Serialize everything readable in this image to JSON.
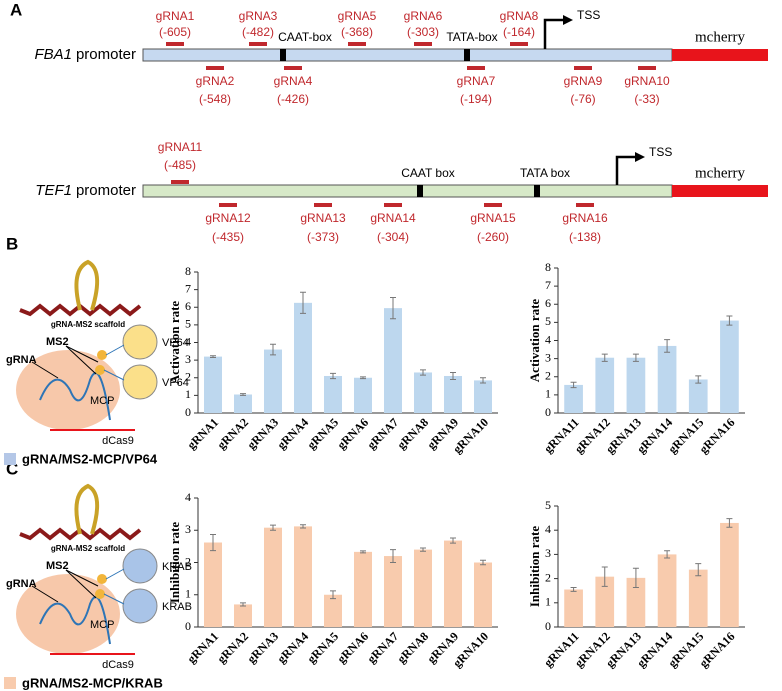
{
  "panel_letters": [
    "A",
    "B",
    "C"
  ],
  "panel_a": {
    "tracks": [
      {
        "gene": "FBA1",
        "label": "promoter",
        "boxes": [
          "CAAT-box",
          "TATA-box"
        ],
        "tss": "TSS",
        "reporter": "mcherry",
        "grnas": [
          {
            "name": "gRNA1",
            "position": "(-605)"
          },
          {
            "name": "gRNA2",
            "position": "(-548)"
          },
          {
            "name": "gRNA3",
            "position": "(-482)"
          },
          {
            "name": "gRNA4",
            "position": "(-426)"
          },
          {
            "name": "gRNA5",
            "position": "(-368)"
          },
          {
            "name": "gRNA6",
            "position": "(-303)"
          },
          {
            "name": "gRNA7",
            "position": "(-194)"
          },
          {
            "name": "gRNA8",
            "position": "(-164)"
          },
          {
            "name": "gRNA9",
            "position": "(-76)"
          },
          {
            "name": "gRNA10",
            "position": "(-33)"
          }
        ]
      },
      {
        "gene": "TEF1",
        "label": "promoter",
        "boxes": [
          "CAAT box",
          "TATA box"
        ],
        "tss": "TSS",
        "reporter": "mcherry",
        "grnas": [
          {
            "name": "gRNA11",
            "position": "(-485)"
          },
          {
            "name": "gRNA12",
            "position": "(-435)"
          },
          {
            "name": "gRNA13",
            "position": "(-373)"
          },
          {
            "name": "gRNA14",
            "position": "(-304)"
          },
          {
            "name": "gRNA15",
            "position": "(-260)"
          },
          {
            "name": "gRNA16",
            "position": "(-138)"
          }
        ]
      }
    ]
  },
  "schematics": [
    {
      "scaffold": "gRNA-MS2 scaffold",
      "ms2": "MS2",
      "grna": "gRNA",
      "effector": [
        "VP64",
        "VP64"
      ],
      "mcp": "MCP",
      "dcas9": "dCas9",
      "legend": "gRNA/MS2-MCP/VP64",
      "effector_color": "#fbe08a",
      "legend_color": "#b4c7e7"
    },
    {
      "scaffold": "gRNA-MS2 scaffold",
      "ms2": "MS2",
      "grna": "gRNA",
      "effector": [
        "KRAB",
        "KRAB"
      ],
      "mcp": "MCP",
      "dcas9": "dCas9",
      "legend": "gRNA/MS2-MCP/KRAB",
      "effector_color": "#a9c4e8",
      "legend_color": "#f8cbad"
    }
  ],
  "chart_data": [
    {
      "type": "bar",
      "ylabel": "Activation rate",
      "color": "#bdd7ee",
      "categories": [
        "gRNA1",
        "gRNA2",
        "gRNA3",
        "gRNA4",
        "gRNA5",
        "gRNA6",
        "gRNA7",
        "gRNA8",
        "gRNA9",
        "gRNA10"
      ],
      "values": [
        3.2,
        1.05,
        3.6,
        6.25,
        2.1,
        2.0,
        5.95,
        2.3,
        2.1,
        1.85
      ],
      "errors": [
        0.05,
        0.05,
        0.3,
        0.6,
        0.15,
        0.05,
        0.6,
        0.15,
        0.2,
        0.15
      ],
      "ylim": [
        0,
        8
      ],
      "yticks": [
        0,
        1,
        2,
        3,
        4,
        5,
        6,
        7,
        8
      ]
    },
    {
      "type": "bar",
      "ylabel": "Activation rate",
      "color": "#bdd7ee",
      "categories": [
        "gRNA11",
        "gRNA12",
        "gRNA13",
        "gRNA14",
        "gRNA15",
        "gRNA16"
      ],
      "values": [
        1.55,
        3.05,
        3.05,
        3.7,
        1.85,
        5.1
      ],
      "errors": [
        0.15,
        0.2,
        0.2,
        0.35,
        0.2,
        0.25
      ],
      "ylim": [
        0,
        8
      ],
      "yticks": [
        0,
        1,
        2,
        3,
        4,
        5,
        6,
        7,
        8
      ]
    },
    {
      "type": "bar",
      "ylabel": "Inhibition rate",
      "color": "#f8cbad",
      "categories": [
        "gRNA1",
        "gRNA2",
        "gRNA3",
        "gRNA4",
        "gRNA5",
        "gRNA6",
        "gRNA7",
        "gRNA8",
        "gRNA9",
        "gRNA10"
      ],
      "values": [
        2.62,
        0.7,
        3.08,
        3.12,
        1.0,
        2.33,
        2.2,
        2.4,
        2.68,
        2.0
      ],
      "errors": [
        0.25,
        0.05,
        0.08,
        0.05,
        0.12,
        0.03,
        0.2,
        0.05,
        0.08,
        0.07
      ],
      "ylim": [
        0,
        4
      ],
      "yticks": [
        0,
        1,
        2,
        3,
        4
      ]
    },
    {
      "type": "bar",
      "ylabel": "Inhibition rate",
      "color": "#f8cbad",
      "categories": [
        "gRNA11",
        "gRNA12",
        "gRNA13",
        "gRNA14",
        "gRNA15",
        "gRNA16"
      ],
      "values": [
        1.55,
        2.08,
        2.03,
        3.0,
        2.37,
        4.3
      ],
      "errors": [
        0.08,
        0.4,
        0.4,
        0.15,
        0.25,
        0.18
      ],
      "ylim": [
        0,
        5
      ],
      "yticks": [
        0,
        1,
        2,
        3,
        4,
        5
      ]
    }
  ]
}
